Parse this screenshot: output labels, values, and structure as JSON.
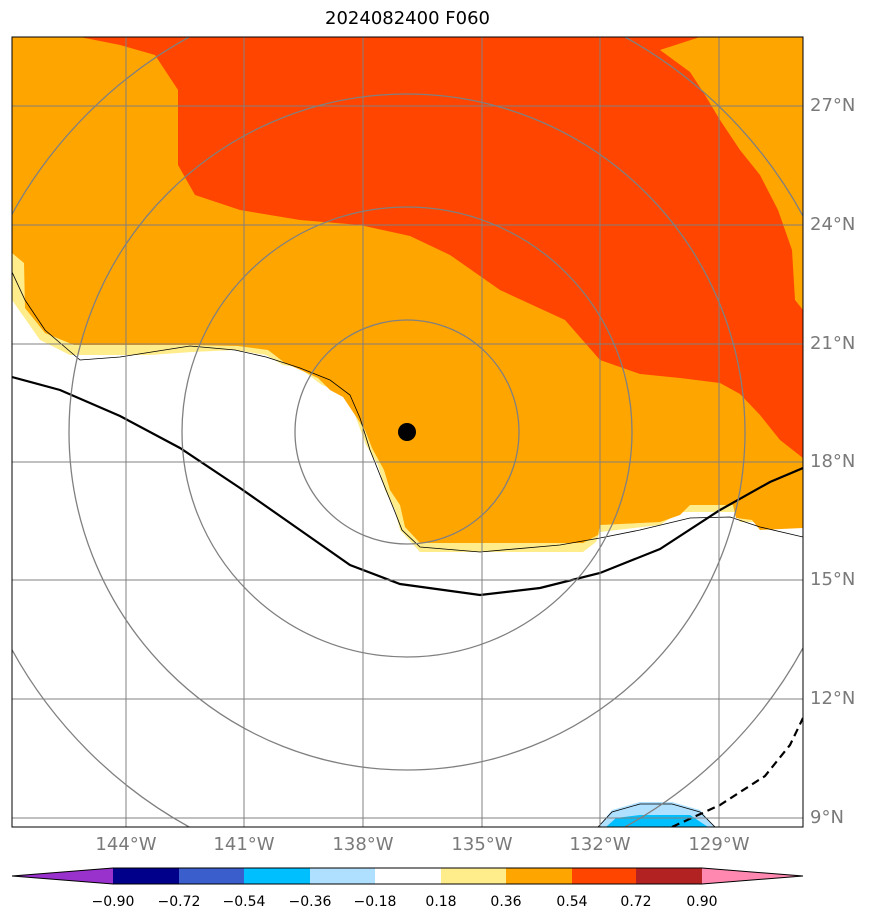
{
  "title": "2024082400 F060",
  "lat_labels": [
    "27°N",
    "24°N",
    "21°N",
    "18°N",
    "15°N",
    "12°N",
    "9°N"
  ],
  "lon_labels": [
    "144°W",
    "141°W",
    "138°W",
    "135°W",
    "132°W",
    "129°W"
  ],
  "colorbar": {
    "colors": [
      "#9932cc",
      "#00008b",
      "#3a5fcd",
      "#00bfff",
      "#b0e0ff",
      "#ffffff",
      "#ffec8b",
      "#ffa500",
      "#ff4500",
      "#b22222",
      "#ff88b0"
    ],
    "tick_labels": [
      "−0.90",
      "−0.72",
      "−0.54",
      "−0.36",
      "−0.18",
      "0.18",
      "0.36",
      "0.54",
      "0.72",
      "0.90"
    ]
  },
  "storm_center": {
    "lat": 18.8,
    "lon": -136.3
  },
  "colors": {
    "orange": "#ffa500",
    "red_orange": "#ff4500",
    "yellow": "#ffec8b",
    "light_blue": "#b0e0ff",
    "blue": "#00bfff",
    "grid": "#808080",
    "rings": "#808080"
  }
}
